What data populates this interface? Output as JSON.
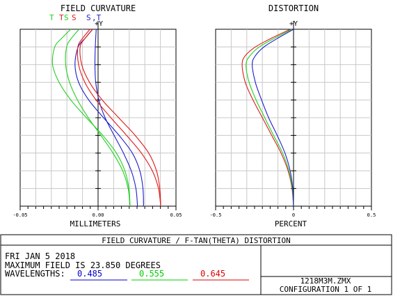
{
  "window": {
    "title": "FIELD CURVATURE / F-TAN(THETA) DISTORTION",
    "file": "1218M3M.ZMX",
    "configuration": "CONFIGURATION  1 OF 1"
  },
  "info": {
    "date": "FRI JAN 5 2018",
    "max_field": "MAXIMUM FIELD IS 23.850 DEGREES",
    "wavelengths_label": "WAVELENGTHS:",
    "wavelengths": [
      {
        "value": "0.485",
        "color": "#0000cc"
      },
      {
        "value": "0.555",
        "color": "#00cc00"
      },
      {
        "value": "0.645",
        "color": "#dd0000"
      }
    ]
  },
  "colors": {
    "blue": "#1c1ccc",
    "green": "#20d020",
    "red": "#e01818",
    "grid": "#c8c8c8"
  },
  "chart_data": [
    {
      "type": "line",
      "title": "FIELD CURVATURE",
      "xlabel": "MILLIMETERS",
      "ylabel": "+Y",
      "xlim": [
        -0.05,
        0.05
      ],
      "ylim": [
        0,
        1
      ],
      "x_tick_labels": [
        "-0.05",
        "0.00",
        "0.05"
      ],
      "legend": [
        {
          "text": "T",
          "color": "#20d020"
        },
        {
          "text": "T",
          "color": "#e01818"
        },
        {
          "text": "S",
          "color": "#20d020"
        },
        {
          "text": "S",
          "color": "#e01818"
        },
        {
          "text": "S",
          "color": "#1c1ccc"
        },
        {
          "text": ",T",
          "color": "#1c1ccc"
        }
      ],
      "series": [
        {
          "name": "T",
          "wavelength": "0.485",
          "color": "#1c1ccc",
          "points": [
            [
              0.0292,
              0
            ],
            [
              0.0288,
              0.1
            ],
            [
              0.0268,
              0.2
            ],
            [
              0.022,
              0.3
            ],
            [
              0.0135,
              0.4
            ],
            [
              0.0035,
              0.5
            ],
            [
              -0.006,
              0.6
            ],
            [
              -0.0125,
              0.7
            ],
            [
              -0.0148,
              0.8
            ],
            [
              -0.0128,
              0.9
            ],
            [
              -0.0082,
              0.95
            ],
            [
              -0.0035,
              1.0
            ]
          ]
        },
        {
          "name": "S",
          "wavelength": "0.485",
          "color": "#1c1ccc",
          "points": [
            [
              0.0253,
              0
            ],
            [
              0.0243,
              0.1
            ],
            [
              0.0213,
              0.2
            ],
            [
              0.0163,
              0.3
            ],
            [
              0.0103,
              0.4
            ],
            [
              0.0045,
              0.5
            ],
            [
              0.0005,
              0.6
            ],
            [
              -0.0015,
              0.7
            ],
            [
              -0.002,
              0.8
            ],
            [
              -0.0018,
              0.9
            ],
            [
              -0.0012,
              1.0
            ]
          ]
        },
        {
          "name": "T",
          "wavelength": "0.555",
          "color": "#20d020",
          "points": [
            [
              0.0205,
              0
            ],
            [
              0.0198,
              0.1
            ],
            [
              0.0172,
              0.2
            ],
            [
              0.0118,
              0.3
            ],
            [
              0.003,
              0.4
            ],
            [
              -0.0075,
              0.5
            ],
            [
              -0.0175,
              0.6
            ],
            [
              -0.025,
              0.7
            ],
            [
              -0.0292,
              0.8
            ],
            [
              -0.0278,
              0.9
            ],
            [
              -0.0232,
              0.95
            ],
            [
              -0.0175,
              1.0
            ]
          ]
        },
        {
          "name": "S",
          "wavelength": "0.555",
          "color": "#20d020",
          "points": [
            [
              0.0205,
              0
            ],
            [
              0.0193,
              0.1
            ],
            [
              0.0158,
              0.2
            ],
            [
              0.0096,
              0.3
            ],
            [
              0.0018,
              0.4
            ],
            [
              -0.0063,
              0.5
            ],
            [
              -0.0132,
              0.6
            ],
            [
              -0.0183,
              0.7
            ],
            [
              -0.0208,
              0.8
            ],
            [
              -0.0202,
              0.9
            ],
            [
              -0.017,
              0.95
            ],
            [
              -0.0122,
              1.0
            ]
          ]
        },
        {
          "name": "T",
          "wavelength": "0.645",
          "color": "#e01818",
          "points": [
            [
              0.0402,
              0
            ],
            [
              0.0396,
              0.1
            ],
            [
              0.0375,
              0.2
            ],
            [
              0.0325,
              0.3
            ],
            [
              0.0238,
              0.4
            ],
            [
              0.0132,
              0.5
            ],
            [
              0.0027,
              0.6
            ],
            [
              -0.0055,
              0.7
            ],
            [
              -0.0105,
              0.8
            ],
            [
              -0.0115,
              0.9
            ],
            [
              -0.0082,
              0.95
            ],
            [
              -0.0035,
              1.0
            ]
          ]
        },
        {
          "name": "S",
          "wavelength": "0.645",
          "color": "#e01818",
          "points": [
            [
              0.0402,
              0
            ],
            [
              0.0388,
              0.1
            ],
            [
              0.0348,
              0.2
            ],
            [
              0.0278,
              0.3
            ],
            [
              0.0183,
              0.4
            ],
            [
              0.0082,
              0.5
            ],
            [
              -0.0013,
              0.6
            ],
            [
              -0.0085,
              0.7
            ],
            [
              -0.0125,
              0.8
            ],
            [
              -0.013,
              0.9
            ],
            [
              -0.0098,
              0.95
            ],
            [
              -0.0052,
              1.0
            ]
          ]
        }
      ]
    },
    {
      "type": "line",
      "title": "DISTORTION",
      "xlabel": "PERCENT",
      "ylabel": "+Y",
      "xlim": [
        -0.5,
        0.5
      ],
      "ylim": [
        0,
        1
      ],
      "x_tick_labels": [
        "-0.5",
        "0",
        "0.5"
      ],
      "series": [
        {
          "name": "0.645",
          "color": "#e01818",
          "points": [
            [
              0,
              0
            ],
            [
              -0.01,
              0.1
            ],
            [
              -0.035,
              0.2
            ],
            [
              -0.08,
              0.3
            ],
            [
              -0.14,
              0.4
            ],
            [
              -0.2,
              0.5
            ],
            [
              -0.26,
              0.6
            ],
            [
              -0.31,
              0.7
            ],
            [
              -0.33,
              0.8
            ],
            [
              -0.31,
              0.85
            ],
            [
              -0.245,
              0.9
            ],
            [
              -0.14,
              0.95
            ],
            [
              -0.02,
              1.0
            ]
          ]
        },
        {
          "name": "0.555",
          "color": "#20d020",
          "points": [
            [
              0,
              0
            ],
            [
              -0.008,
              0.1
            ],
            [
              -0.03,
              0.2
            ],
            [
              -0.07,
              0.3
            ],
            [
              -0.128,
              0.4
            ],
            [
              -0.185,
              0.5
            ],
            [
              -0.24,
              0.6
            ],
            [
              -0.285,
              0.7
            ],
            [
              -0.305,
              0.8
            ],
            [
              -0.28,
              0.85
            ],
            [
              -0.22,
              0.9
            ],
            [
              -0.12,
              0.95
            ],
            [
              -0.01,
              1.0
            ]
          ]
        },
        {
          "name": "0.485",
          "color": "#1c1ccc",
          "points": [
            [
              0,
              0
            ],
            [
              -0.005,
              0.1
            ],
            [
              -0.022,
              0.2
            ],
            [
              -0.055,
              0.3
            ],
            [
              -0.105,
              0.4
            ],
            [
              -0.16,
              0.5
            ],
            [
              -0.205,
              0.6
            ],
            [
              -0.245,
              0.7
            ],
            [
              -0.265,
              0.8
            ],
            [
              -0.245,
              0.85
            ],
            [
              -0.19,
              0.9
            ],
            [
              -0.1,
              0.95
            ],
            [
              0,
              1.0
            ]
          ]
        }
      ]
    }
  ]
}
